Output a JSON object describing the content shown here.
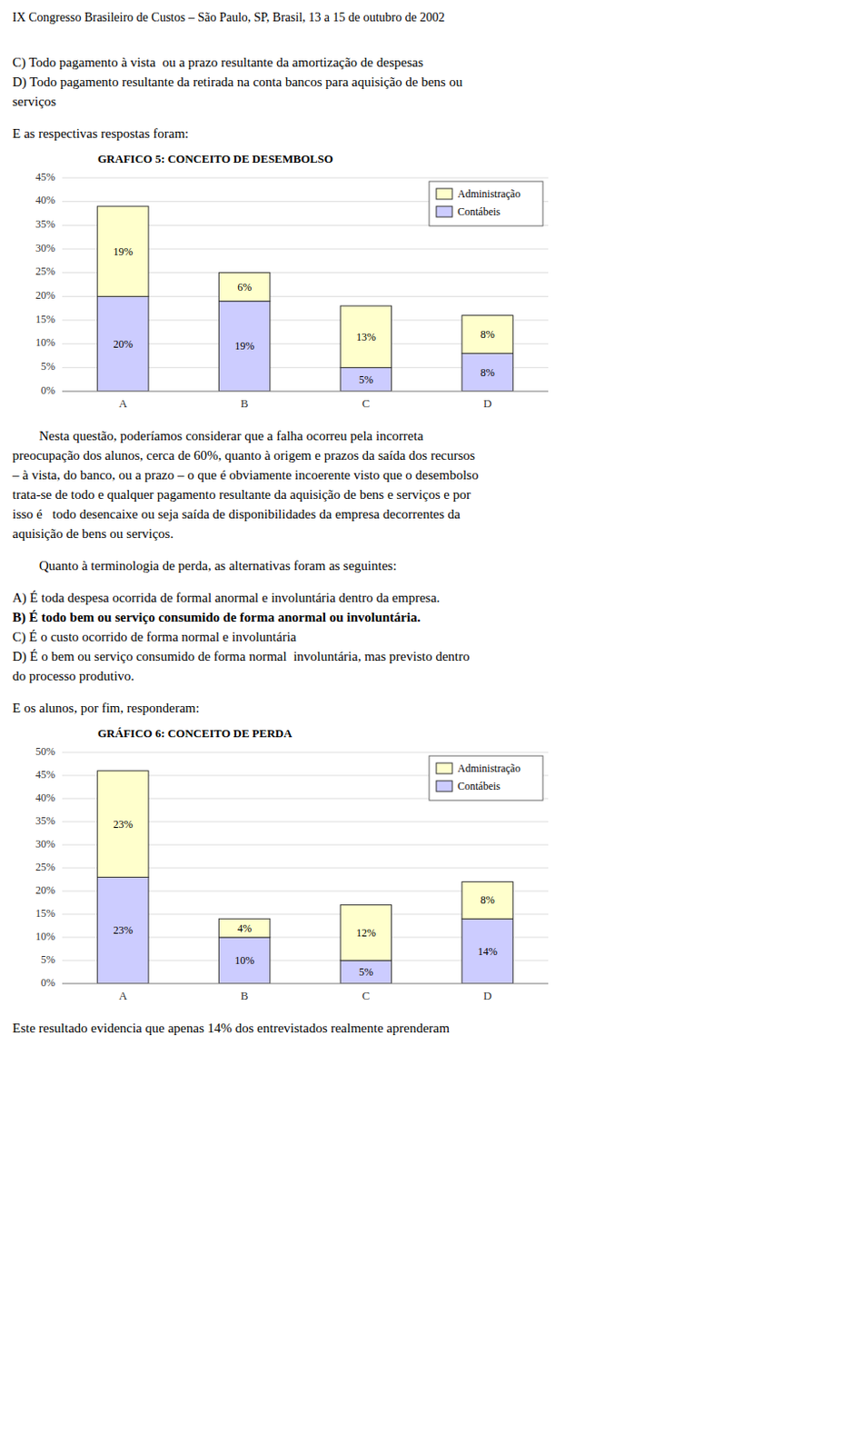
{
  "texts": {
    "header": "IX Congresso Brasileiro de Custos – São Paulo, SP, Brasil, 13 a 15 de outubro de 2002",
    "before_chart_1": [
      [
        {
          "text": "C) Todo pagamento à vista  ou a prazo resultante da amortização de despesas"
        },
        {
          "text": "D) Todo pagamento resultante da retirada na conta bancos para aquisição de bens ou"
        },
        {
          "text": "serviços"
        }
      ],
      [
        {
          "text": "E as respectivas respostas foram:"
        }
      ]
    ],
    "between_charts": [
      [
        {
          "text": "        Nesta questão, poderíamos considerar que a falha ocorreu pela incorreta"
        },
        {
          "text": "preocupação dos alunos, cerca de 60%, quanto à origem e prazos da saída dos recursos"
        },
        {
          "text": "– à vista, do banco, ou a prazo – o que é obviamente incoerente visto que o desembolso"
        },
        {
          "text": "trata-se de todo e qualquer pagamento resultante da aquisição de bens e serviços e por"
        },
        {
          "text": "isso é   todo desencaixe ou seja saída de disponibilidades da empresa decorrentes da"
        },
        {
          "text": "aquisição de bens ou serviços."
        }
      ],
      [
        {
          "text": "        Quanto à terminologia de perda, as alternativas foram as seguintes:"
        }
      ],
      [
        {
          "text": "A) É toda despesa ocorrida de formal anormal e involuntária dentro da empresa."
        },
        {
          "text": "B) É todo bem ou serviço consumido de forma anormal ou involuntária.",
          "bold": true
        },
        {
          "text": "C) É o custo ocorrido de forma normal e involuntária"
        },
        {
          "text": "D) É o bem ou serviço consumido de forma normal  involuntária, mas previsto dentro"
        },
        {
          "text": "do processo produtivo."
        }
      ],
      [
        {
          "text": "E os alunos, por fim, responderam:"
        }
      ]
    ],
    "after_chart_2": [
      [
        {
          "text": "Este resultado evidencia que apenas 14% dos entrevistados realmente aprenderam"
        }
      ]
    ]
  },
  "chart_data": [
    {
      "type": "bar",
      "stacked": true,
      "title": "GRAFICO 5: CONCEITO DE DESEMBOLSO",
      "categories": [
        "A",
        "B",
        "C",
        "D"
      ],
      "series": [
        {
          "name": "Contábeis",
          "color": "#ccccff",
          "values": [
            0.2,
            0.19,
            0.05,
            0.08
          ],
          "value_labels": [
            "20%",
            "19%",
            "5%",
            "8%"
          ]
        },
        {
          "name": "Administração",
          "color": "#ffffcc",
          "values": [
            0.19,
            0.06,
            0.13,
            0.08
          ],
          "value_labels": [
            "19%",
            "6%",
            "13%",
            "8%"
          ]
        }
      ],
      "ylim": [
        0.0,
        0.45
      ],
      "yticks": [
        {
          "value": 0.0,
          "label": "0%"
        },
        {
          "value": 0.05,
          "label": "5%"
        },
        {
          "value": 0.1,
          "label": "10%"
        },
        {
          "value": 0.15,
          "label": "15%"
        },
        {
          "value": 0.2,
          "label": "20%"
        },
        {
          "value": 0.25,
          "label": "25%"
        },
        {
          "value": 0.3,
          "label": "30%"
        },
        {
          "value": 0.35,
          "label": "35%"
        },
        {
          "value": 0.4,
          "label": "40%"
        },
        {
          "value": 0.45,
          "label": "45%"
        }
      ],
      "grid": true,
      "legend": "top-right",
      "data_labels": true
    },
    {
      "type": "bar",
      "stacked": true,
      "title": "GRÁFICO 6: CONCEITO DE PERDA",
      "categories": [
        "A",
        "B",
        "C",
        "D"
      ],
      "series": [
        {
          "name": "Contábeis",
          "color": "#ccccff",
          "values": [
            0.23,
            0.1,
            0.05,
            0.14
          ],
          "value_labels": [
            "23%",
            "10%",
            "5%",
            "14%"
          ]
        },
        {
          "name": "Administração",
          "color": "#ffffcc",
          "values": [
            0.23,
            0.04,
            0.12,
            0.08
          ],
          "value_labels": [
            "23%",
            "4%",
            "12%",
            "8%"
          ]
        }
      ],
      "ylim": [
        0.0,
        0.5
      ],
      "yticks": [
        {
          "value": 0.0,
          "label": "0%"
        },
        {
          "value": 0.05,
          "label": "5%"
        },
        {
          "value": 0.1,
          "label": "10%"
        },
        {
          "value": 0.15,
          "label": "15%"
        },
        {
          "value": 0.2,
          "label": "20%"
        },
        {
          "value": 0.25,
          "label": "25%"
        },
        {
          "value": 0.3,
          "label": "30%"
        },
        {
          "value": 0.35,
          "label": "35%"
        },
        {
          "value": 0.4,
          "label": "40%"
        },
        {
          "value": 0.45,
          "label": "45%"
        },
        {
          "value": 0.5,
          "label": "50%"
        }
      ],
      "grid": true,
      "legend": "top-right",
      "data_labels": true
    }
  ]
}
